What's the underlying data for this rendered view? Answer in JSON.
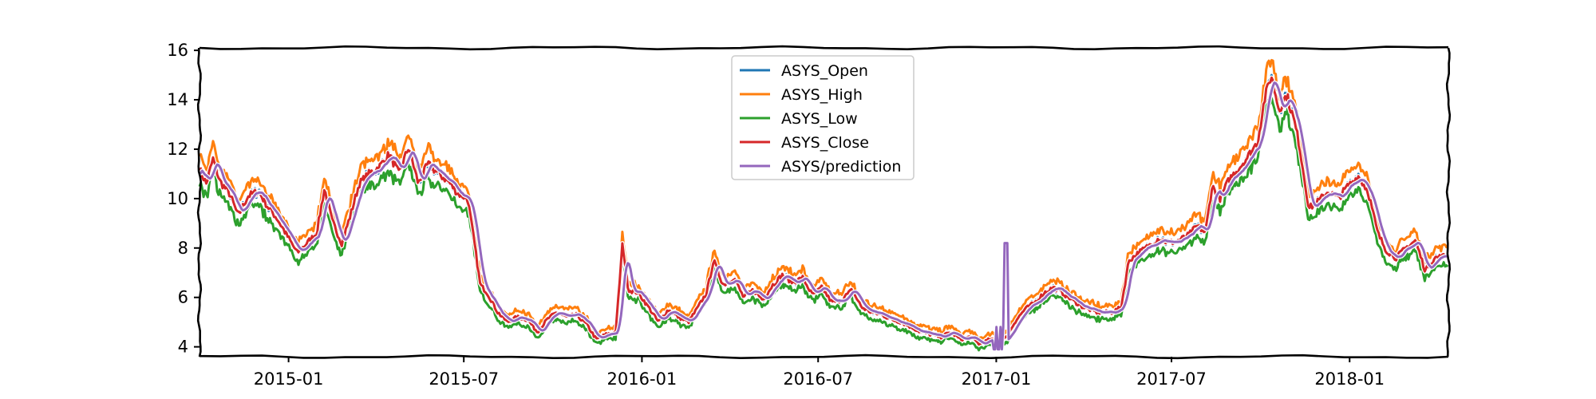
{
  "chart_data": {
    "type": "line",
    "title": "",
    "xlabel": "",
    "ylabel": "",
    "x_date_range": [
      "2014-10-01",
      "2018-04-13"
    ],
    "x_ticks": [
      "2015-01",
      "2015-07",
      "2016-01",
      "2016-07",
      "2017-01",
      "2017-07",
      "2018-01"
    ],
    "y_ticks": [
      4,
      6,
      8,
      10,
      12,
      14,
      16
    ],
    "ylim": [
      3.6,
      16.1
    ],
    "legend_position": "upper center",
    "grid": false,
    "style": "xkcd",
    "series": [
      {
        "name": "ASYS_Open",
        "color": "#1f77b4"
      },
      {
        "name": "ASYS_High",
        "color": "#ff7f0e"
      },
      {
        "name": "ASYS_Low",
        "color": "#2ca02c"
      },
      {
        "name": "ASYS_Close",
        "color": "#d62728"
      },
      {
        "name": "ASYS/prediction",
        "color": "#9467bd"
      }
    ],
    "close_keypoints": [
      [
        "2014-10-01",
        11.2
      ],
      [
        "2014-10-08",
        10.6
      ],
      [
        "2014-10-15",
        11.6
      ],
      [
        "2014-10-22",
        10.7
      ],
      [
        "2014-11-01",
        10.2
      ],
      [
        "2014-11-10",
        9.3
      ],
      [
        "2014-11-20",
        10.1
      ],
      [
        "2014-12-01",
        10.3
      ],
      [
        "2014-12-10",
        9.7
      ],
      [
        "2014-12-20",
        9.2
      ],
      [
        "2015-01-01",
        8.4
      ],
      [
        "2015-01-10",
        7.8
      ],
      [
        "2015-01-20",
        8.2
      ],
      [
        "2015-01-30",
        8.6
      ],
      [
        "2015-02-07",
        10.4
      ],
      [
        "2015-02-15",
        9.1
      ],
      [
        "2015-02-25",
        8.2
      ],
      [
        "2015-03-05",
        9.2
      ],
      [
        "2015-03-15",
        10.6
      ],
      [
        "2015-03-25",
        11.0
      ],
      [
        "2015-04-05",
        11.3
      ],
      [
        "2015-04-15",
        11.8
      ],
      [
        "2015-04-25",
        11.0
      ],
      [
        "2015-05-05",
        12.1
      ],
      [
        "2015-05-15",
        10.6
      ],
      [
        "2015-05-25",
        11.4
      ],
      [
        "2015-06-05",
        11.0
      ],
      [
        "2015-06-15",
        10.7
      ],
      [
        "2015-06-25",
        10.2
      ],
      [
        "2015-07-05",
        10.0
      ],
      [
        "2015-07-12",
        8.2
      ],
      [
        "2015-07-18",
        6.5
      ],
      [
        "2015-07-25",
        6.2
      ],
      [
        "2015-08-05",
        5.4
      ],
      [
        "2015-08-15",
        5.0
      ],
      [
        "2015-08-25",
        5.2
      ],
      [
        "2015-09-05",
        5.1
      ],
      [
        "2015-09-15",
        4.6
      ],
      [
        "2015-09-25",
        5.1
      ],
      [
        "2015-10-05",
        5.4
      ],
      [
        "2015-10-15",
        5.2
      ],
      [
        "2015-10-25",
        5.3
      ],
      [
        "2015-11-05",
        4.9
      ],
      [
        "2015-11-15",
        4.3
      ],
      [
        "2015-11-25",
        4.5
      ],
      [
        "2015-12-05",
        4.6
      ],
      [
        "2015-12-12",
        8.2
      ],
      [
        "2015-12-18",
        6.3
      ],
      [
        "2015-12-28",
        6.2
      ],
      [
        "2016-01-08",
        5.6
      ],
      [
        "2016-01-18",
        5.0
      ],
      [
        "2016-01-28",
        5.5
      ],
      [
        "2016-02-08",
        5.2
      ],
      [
        "2016-02-18",
        5.0
      ],
      [
        "2016-02-28",
        5.6
      ],
      [
        "2016-03-08",
        6.2
      ],
      [
        "2016-03-15",
        7.5
      ],
      [
        "2016-03-25",
        6.5
      ],
      [
        "2016-04-05",
        6.8
      ],
      [
        "2016-04-15",
        6.0
      ],
      [
        "2016-04-25",
        6.3
      ],
      [
        "2016-05-05",
        5.9
      ],
      [
        "2016-05-15",
        6.5
      ],
      [
        "2016-05-25",
        6.9
      ],
      [
        "2016-06-05",
        6.6
      ],
      [
        "2016-06-15",
        6.8
      ],
      [
        "2016-06-25",
        6.1
      ],
      [
        "2016-07-05",
        6.4
      ],
      [
        "2016-07-15",
        5.8
      ],
      [
        "2016-07-25",
        5.9
      ],
      [
        "2016-08-05",
        6.3
      ],
      [
        "2016-08-15",
        5.6
      ],
      [
        "2016-08-25",
        5.4
      ],
      [
        "2016-09-05",
        5.3
      ],
      [
        "2016-09-15",
        5.1
      ],
      [
        "2016-09-25",
        5.0
      ],
      [
        "2016-10-05",
        4.8
      ],
      [
        "2016-10-15",
        4.6
      ],
      [
        "2016-10-25",
        4.5
      ],
      [
        "2016-11-05",
        4.4
      ],
      [
        "2016-11-15",
        4.6
      ],
      [
        "2016-11-25",
        4.3
      ],
      [
        "2016-12-05",
        4.4
      ],
      [
        "2016-12-15",
        4.1
      ],
      [
        "2016-12-25",
        4.3
      ],
      [
        "2017-01-05",
        4.2
      ],
      [
        "2017-01-12",
        4.4
      ],
      [
        "2017-01-20",
        5.0
      ],
      [
        "2017-01-30",
        5.5
      ],
      [
        "2017-02-10",
        5.8
      ],
      [
        "2017-02-20",
        6.2
      ],
      [
        "2017-03-01",
        6.4
      ],
      [
        "2017-03-10",
        6.2
      ],
      [
        "2017-03-20",
        5.9
      ],
      [
        "2017-04-01",
        5.6
      ],
      [
        "2017-04-15",
        5.4
      ],
      [
        "2017-05-01",
        5.4
      ],
      [
        "2017-05-10",
        5.6
      ],
      [
        "2017-05-18",
        7.5
      ],
      [
        "2017-05-28",
        7.8
      ],
      [
        "2017-06-08",
        8.1
      ],
      [
        "2017-06-18",
        8.4
      ],
      [
        "2017-06-28",
        8.2
      ],
      [
        "2017-07-08",
        8.3
      ],
      [
        "2017-07-18",
        8.5
      ],
      [
        "2017-07-28",
        8.9
      ],
      [
        "2017-08-05",
        8.6
      ],
      [
        "2017-08-12",
        10.5
      ],
      [
        "2017-08-20",
        10.0
      ],
      [
        "2017-08-30",
        10.8
      ],
      [
        "2017-09-08",
        11.2
      ],
      [
        "2017-09-18",
        11.7
      ],
      [
        "2017-09-28",
        12.3
      ],
      [
        "2017-10-05",
        14.0
      ],
      [
        "2017-10-12",
        15.0
      ],
      [
        "2017-10-20",
        13.6
      ],
      [
        "2017-10-28",
        14.2
      ],
      [
        "2017-11-05",
        13.1
      ],
      [
        "2017-11-10",
        12.2
      ],
      [
        "2017-11-20",
        9.6
      ],
      [
        "2017-11-30",
        9.9
      ],
      [
        "2017-12-10",
        10.3
      ],
      [
        "2017-12-20",
        10.0
      ],
      [
        "2017-12-30",
        10.5
      ],
      [
        "2018-01-10",
        10.9
      ],
      [
        "2018-01-20",
        10.3
      ],
      [
        "2018-01-30",
        8.6
      ],
      [
        "2018-02-08",
        7.9
      ],
      [
        "2018-02-18",
        7.6
      ],
      [
        "2018-02-28",
        8.0
      ],
      [
        "2018-03-10",
        8.3
      ],
      [
        "2018-03-20",
        7.1
      ],
      [
        "2018-03-30",
        7.6
      ],
      [
        "2018-04-13",
        7.7
      ]
    ],
    "prediction_spikes": [
      [
        "2016-12-28",
        4.8
      ],
      [
        "2017-01-11",
        8.2
      ]
    ]
  }
}
